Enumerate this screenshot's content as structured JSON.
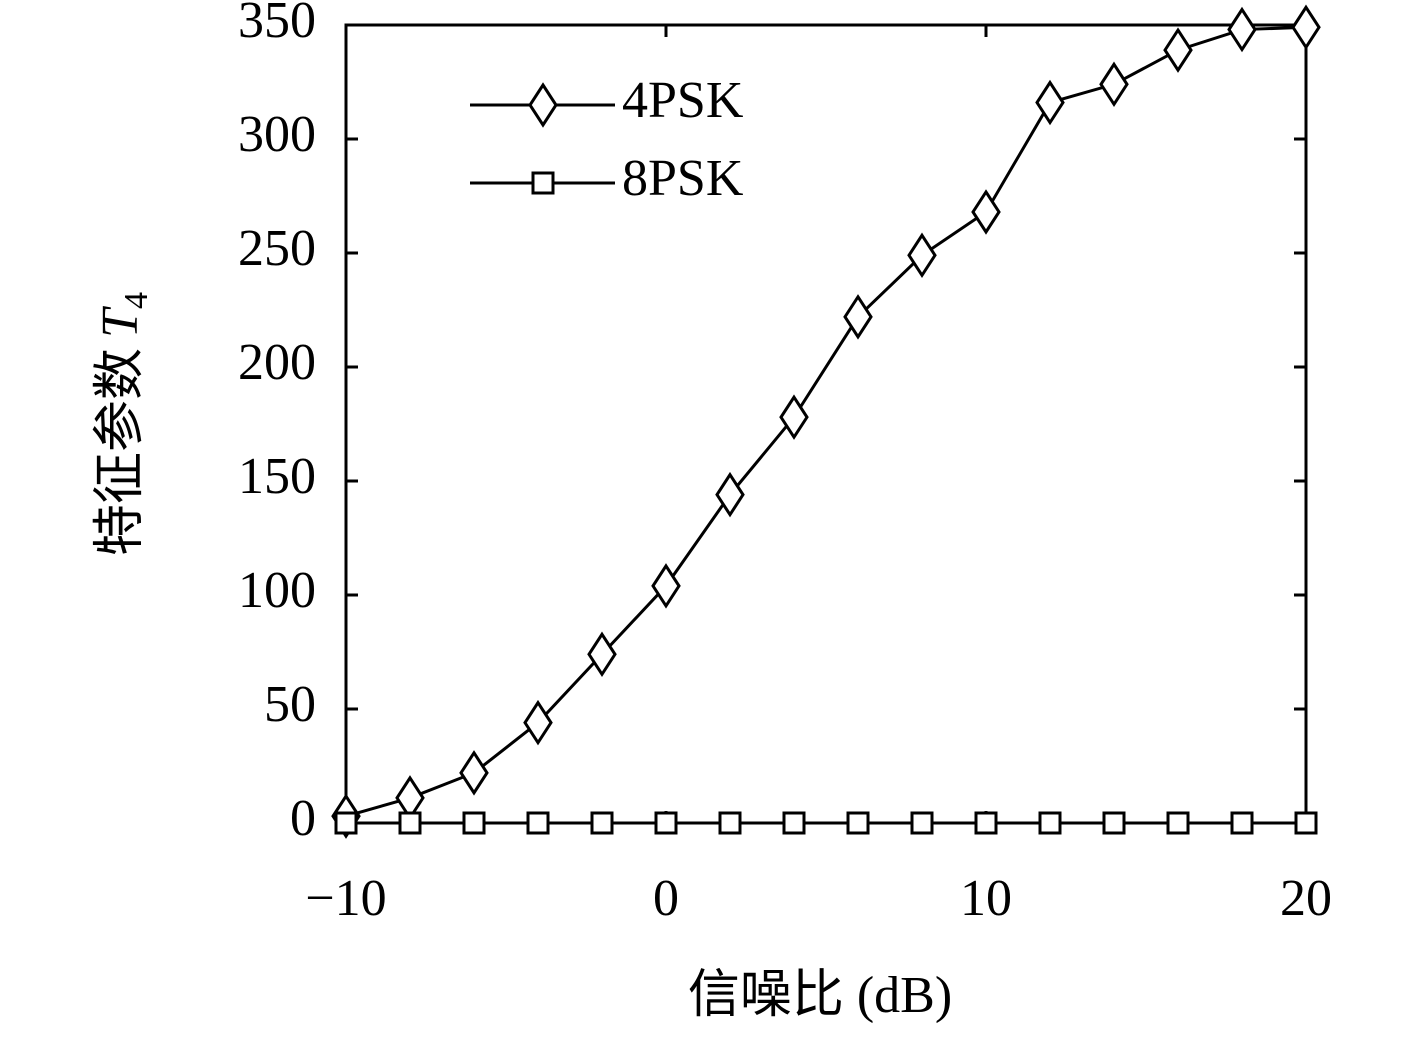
{
  "chart_data": {
    "type": "line",
    "xlabel": "信噪比 (dB)",
    "ylabel": "特征参数",
    "ylabel_symbol": "T",
    "ylabel_subscript": "4",
    "x": [
      -10,
      -8,
      -6,
      -4,
      -2,
      0,
      2,
      4,
      6,
      8,
      10,
      12,
      14,
      16,
      18,
      20
    ],
    "series": [
      {
        "name": "4PSK",
        "color": "#000000",
        "marker": "diamond",
        "values": [
          3,
          11,
          22,
          44,
          74,
          104,
          144,
          178,
          222,
          249,
          268,
          316,
          324,
          339,
          348,
          349
        ]
      },
      {
        "name": "8PSK",
        "color": "#000000",
        "marker": "square",
        "values": [
          0,
          0,
          0,
          0,
          0,
          0,
          0,
          0,
          0,
          0,
          0,
          0,
          0,
          0,
          0,
          0
        ]
      }
    ],
    "xlim": [
      -10,
      20
    ],
    "xticks": [
      {
        "value": -10,
        "label": "−10"
      },
      0,
      10,
      20
    ],
    "ylim": [
      0,
      350
    ],
    "yticks": [
      0,
      50,
      100,
      150,
      200,
      250,
      300,
      350
    ],
    "grid": false,
    "legend": "upper-left"
  }
}
